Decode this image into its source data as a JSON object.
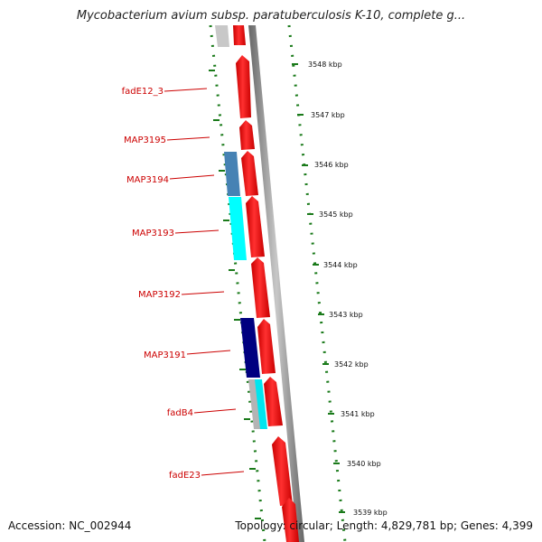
{
  "title": "Mycobacterium avium subsp. paratuberculosis K-10, complete g...",
  "footer": {
    "accession": "Accession: NC_002944",
    "topology": "Topology: circular; Length: 4,829,781 bp; Genes: 4,399"
  },
  "colors": {
    "forward_gene": "#ff0000",
    "steelblue_gene": "#4682b4",
    "cyan_gene": "#00ffff",
    "navy_gene": "#000080",
    "grey_gene": "#c8c8c8",
    "label": "#cc0000",
    "tick": "#006400",
    "backbone": "#888888"
  },
  "kbp_ticks": [
    "3548 kbp",
    "3547 kbp",
    "3546 kbp",
    "3545 kbp",
    "3544 kbp",
    "3543 kbp",
    "3542 kbp",
    "3541 kbp",
    "3540 kbp",
    "3539 kbp"
  ],
  "gene_labels": [
    "fadE12_3",
    "MAP3195",
    "MAP3194",
    "MAP3193",
    "MAP3192",
    "MAP3191",
    "fadB4",
    "fadE23"
  ]
}
